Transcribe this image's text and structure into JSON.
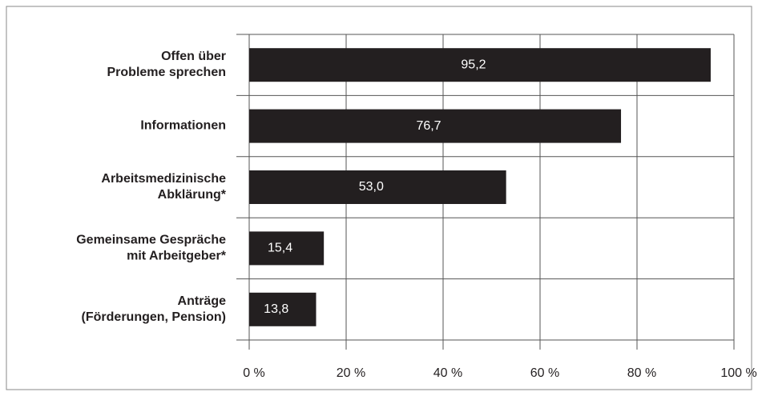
{
  "chart_data": {
    "type": "bar",
    "orientation": "horizontal",
    "categories": [
      "Offen über\nProbleme sprechen",
      "Informationen",
      "Arbeitsmedizinische\nAbklärung*",
      "Gemeinsame Gespräche\nmit Arbeitgeber*",
      "Anträge\n(Förderungen, Pension)"
    ],
    "values": [
      95.2,
      76.7,
      53.0,
      15.4,
      13.8
    ],
    "value_labels": [
      "95,2",
      "76,7",
      "53,0",
      "15,4",
      "13,8"
    ],
    "color": "#231f20",
    "xlim": [
      0,
      100
    ],
    "xticks": [
      {
        "value": 0,
        "label": "0 %"
      },
      {
        "value": 20,
        "label": "20 %"
      },
      {
        "value": 40,
        "label": "40 %"
      },
      {
        "value": 60,
        "label": "60 %"
      },
      {
        "value": 80,
        "label": "80 %"
      },
      {
        "value": 100,
        "label": "100 %"
      }
    ],
    "grid": true
  }
}
